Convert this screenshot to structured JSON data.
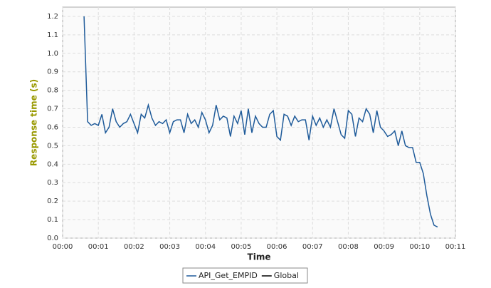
{
  "chart_data": {
    "type": "line",
    "y_label": "Response time (s)",
    "x_label": "Time",
    "xlim": [
      0,
      660
    ],
    "ylim": [
      0,
      1.25
    ],
    "xticks": [
      {
        "value": 0,
        "label": "00:00"
      },
      {
        "value": 60,
        "label": "00:01"
      },
      {
        "value": 120,
        "label": "00:02"
      },
      {
        "value": 180,
        "label": "00:03"
      },
      {
        "value": 240,
        "label": "00:04"
      },
      {
        "value": 300,
        "label": "00:05"
      },
      {
        "value": 360,
        "label": "00:06"
      },
      {
        "value": 420,
        "label": "00:07"
      },
      {
        "value": 480,
        "label": "00:08"
      },
      {
        "value": 540,
        "label": "00:09"
      },
      {
        "value": 600,
        "label": "00:10"
      },
      {
        "value": 660,
        "label": "00:11"
      }
    ],
    "yticks": [
      {
        "value": 0,
        "label": "0.0"
      },
      0.1,
      0.2,
      0.3,
      0.4,
      0.5,
      0.6,
      0.7,
      0.8,
      0.9,
      {
        "value": 1,
        "label": "1.0"
      },
      1.1,
      1.2
    ],
    "grid": true,
    "series": [
      {
        "name": "API_Get_EMPID",
        "color": "#1f5b9a",
        "x": [
          36,
          42,
          48,
          54,
          60,
          66,
          72,
          78,
          84,
          90,
          96,
          102,
          108,
          114,
          120,
          126,
          132,
          138,
          144,
          150,
          156,
          162,
          168,
          174,
          180,
          186,
          192,
          198,
          204,
          210,
          216,
          222,
          228,
          234,
          240,
          246,
          252,
          258,
          264,
          270,
          276,
          282,
          288,
          294,
          300,
          306,
          312,
          318,
          324,
          330,
          336,
          342,
          348,
          354,
          360,
          366,
          372,
          378,
          384,
          390,
          396,
          402,
          408,
          414,
          420,
          426,
          432,
          438,
          444,
          450,
          456,
          462,
          468,
          474,
          480,
          486,
          492,
          498,
          504,
          510,
          516,
          522,
          528,
          534,
          540,
          546,
          552,
          558,
          564,
          570,
          576,
          582,
          588,
          594,
          600,
          606,
          612,
          618,
          624,
          630
        ],
        "values": [
          1.2,
          0.63,
          0.61,
          0.62,
          0.61,
          0.67,
          0.57,
          0.6,
          0.7,
          0.63,
          0.6,
          0.62,
          0.63,
          0.67,
          0.62,
          0.57,
          0.67,
          0.65,
          0.72,
          0.65,
          0.61,
          0.63,
          0.62,
          0.64,
          0.57,
          0.63,
          0.64,
          0.64,
          0.57,
          0.67,
          0.62,
          0.64,
          0.6,
          0.68,
          0.64,
          0.57,
          0.61,
          0.72,
          0.64,
          0.66,
          0.65,
          0.55,
          0.66,
          0.62,
          0.69,
          0.56,
          0.7,
          0.57,
          0.66,
          0.62,
          0.6,
          0.6,
          0.67,
          0.69,
          0.55,
          0.53,
          0.67,
          0.66,
          0.61,
          0.66,
          0.63,
          0.64,
          0.64,
          0.53,
          0.66,
          0.61,
          0.65,
          0.6,
          0.64,
          0.6,
          0.7,
          0.63,
          0.56,
          0.54,
          0.69,
          0.67,
          0.55,
          0.65,
          0.63,
          0.7,
          0.67,
          0.57,
          0.69,
          0.6,
          0.58,
          0.55,
          0.56,
          0.58,
          0.5,
          0.58,
          0.5,
          0.49,
          0.49,
          0.41,
          0.41,
          0.35,
          0.23,
          0.13,
          0.07,
          0.06
        ]
      },
      {
        "name": "Global",
        "color": "#000000",
        "x": [],
        "values": []
      }
    ]
  }
}
